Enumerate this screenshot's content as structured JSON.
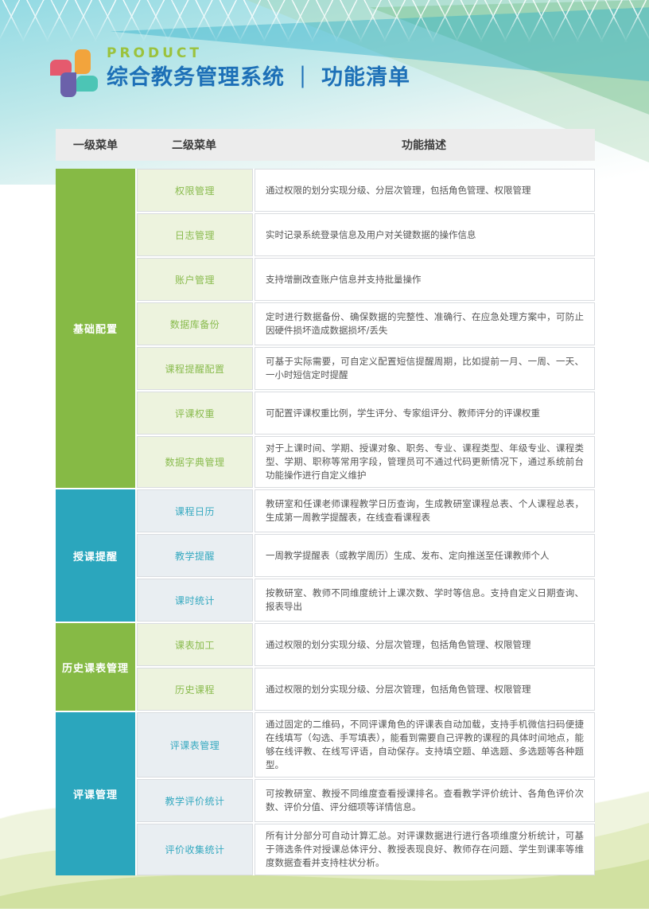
{
  "header": {
    "brand_label": "PRODUCT",
    "title_main": "综合教务管理系统",
    "title_divider": "｜",
    "title_sub": "功能清单",
    "logo_icon": "chat-bubble-pinwheel-logo"
  },
  "colors": {
    "brand_green": "#9bc23c",
    "title_blue": "#1d70b7",
    "section_green": "#86ba45",
    "section_teal": "#2ba6bd",
    "level2_green_bg": "#edf3de",
    "level2_teal_bg": "#e9eef2",
    "header_row_bg": "#ececec",
    "logo_orange": "#f2a43c",
    "logo_pink": "#e55a6e",
    "logo_teal": "#4cc5b5",
    "logo_purple": "#6b61aa"
  },
  "table": {
    "columns": [
      "一级菜单",
      "二级菜单",
      "功能描述"
    ],
    "sections": [
      {
        "name": "基础配置",
        "theme": "green",
        "rows": [
          {
            "menu": "权限管理",
            "desc": "通过权限的划分实现分级、分层次管理，包括角色管理、权限管理"
          },
          {
            "menu": "日志管理",
            "desc": "实时记录系统登录信息及用户对关键数据的操作信息"
          },
          {
            "menu": "账户管理",
            "desc": "支持增删改查账户信息并支持批量操作"
          },
          {
            "menu": "数据库备份",
            "desc": "定时进行数据备份、确保数据的完整性、准确行、在应急处理方案中，可防止因硬件损坏造成数据损坏/丢失"
          },
          {
            "menu": "课程提醒配置",
            "desc": "可基于实际需要，可自定义配置短信提醒周期，比如提前一月、一周、一天、一小时短信定时提醒"
          },
          {
            "menu": "评课权重",
            "desc": "可配置评课权重比例，学生评分、专家组评分、教师评分的评课权重"
          },
          {
            "menu": "数据字典管理",
            "desc": "对于上课时间、学期、授课对象、职务、专业、课程类型、年级专业、课程类型、学期、职称等常用字段，管理员可不通过代码更新情况下，通过系统前台功能操作进行自定义维护"
          }
        ]
      },
      {
        "name": "授课提醒",
        "theme": "teal",
        "rows": [
          {
            "menu": "课程日历",
            "desc": "教研室和任课老师课程教学日历查询，生成教研室课程总表、个人课程总表，生成第一周教学提醒表，在线查看课程表"
          },
          {
            "menu": "教学提醒",
            "desc": "一周教学提醒表（或教学周历）生成、发布、定向推送至任课教师个人"
          },
          {
            "menu": "课时统计",
            "desc": "按教研室、教师不同维度统计上课次数、学时等信息。支持自定义日期查询、报表导出"
          }
        ]
      },
      {
        "name": "历史课表管理",
        "theme": "green",
        "rows": [
          {
            "menu": "课表加工",
            "desc": "通过权限的划分实现分级、分层次管理，包括角色管理、权限管理"
          },
          {
            "menu": "历史课程",
            "desc": "通过权限的划分实现分级、分层次管理，包括角色管理、权限管理"
          }
        ]
      },
      {
        "name": "评课管理",
        "theme": "teal",
        "rows": [
          {
            "menu": "评课表管理",
            "desc": "通过固定的二维码，不同评课角色的评课表自动加载，支持手机微信扫码便捷在线填写（勾选、手写填表），能看到需要自己评教的课程的具体时间地点，能够在线评教、在线写评语，自动保存。支持填空题、单选题、多选题等各种题型。"
          },
          {
            "menu": "教学评价统计",
            "desc": "可按教研室、教授不同维度查看授课排名。查看教学评价统计、各角色评价次数、评价分值、评分细项等详情信息。"
          },
          {
            "menu": "评价收集统计",
            "desc": "所有计分部分可自动计算汇总。对评课数据进行进行各项维度分析统计，可基于筛选条件对授课总体评分、教授表现良好、教师存在问题、学生到课率等维度数据查看并支持柱状分析。"
          }
        ]
      }
    ]
  }
}
